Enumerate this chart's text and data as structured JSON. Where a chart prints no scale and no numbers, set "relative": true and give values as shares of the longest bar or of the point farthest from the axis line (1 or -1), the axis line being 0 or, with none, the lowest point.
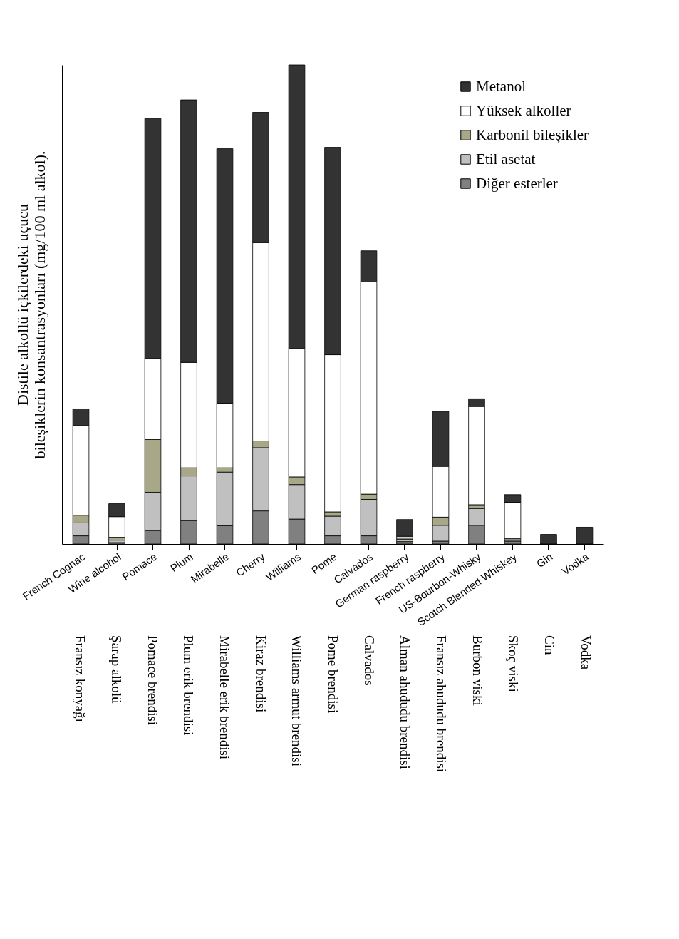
{
  "chart_data": {
    "type": "bar",
    "stacked": true,
    "relative": true,
    "legend": "top right",
    "grid": false,
    "ylabel": "Distile alkollü içkilerdeki uçucu bileşiklerin konsantrasyonları (mg/100 ml alkol).",
    "categories": [
      "French Cognac",
      "Wine alcohol",
      "Pomace",
      "Plum",
      "Mirabelle",
      "Cherry",
      "Williams",
      "Pome",
      "Calvados",
      "German raspberry",
      "French raspberry",
      "US-Bourbon-Whisky",
      "Scotch Blended Whiskey",
      "Gin",
      "Vodka"
    ],
    "series": [
      {
        "name": "Diğer esterler",
        "color": "#808080",
        "values": [
          0.017,
          0.003,
          0.028,
          0.049,
          0.038,
          0.069,
          0.052,
          0.017,
          0.017,
          0.005,
          0.006,
          0.039,
          0.006,
          0,
          0
        ]
      },
      {
        "name": "Etil asetat",
        "color": "#c0c0c0",
        "values": [
          0.027,
          0.005,
          0.08,
          0.093,
          0.112,
          0.132,
          0.072,
          0.041,
          0.076,
          0.005,
          0.033,
          0.035,
          0.002,
          0,
          0
        ]
      },
      {
        "name": "Karbonil bileşikler",
        "color": "#a8a888",
        "values": [
          0.016,
          0.006,
          0.11,
          0.017,
          0.009,
          0.014,
          0.016,
          0.009,
          0.011,
          0.003,
          0.017,
          0.008,
          0.003,
          0,
          0
        ]
      },
      {
        "name": "Yüksek alkoller",
        "color": "#ffffff",
        "values": [
          0.187,
          0.043,
          0.169,
          0.22,
          0.135,
          0.414,
          0.268,
          0.328,
          0.443,
          0.003,
          0.106,
          0.205,
          0.076,
          0,
          0
        ]
      },
      {
        "name": "Metanol",
        "color": "#333333",
        "values": [
          0.035,
          0.027,
          0.501,
          0.548,
          0.531,
          0.272,
          0.592,
          0.433,
          0.065,
          0.035,
          0.115,
          0.016,
          0.016,
          0.02,
          0.035
        ]
      }
    ],
    "annotations": [
      "Fransız konyağı",
      "Şarap alkolü",
      "Pomace brendisi",
      "Plum erik brendisi",
      "Mirabelle erik brendisi",
      "Kiraz brendisi",
      "Williams armut brendisi",
      "Pome brendisi",
      "Calvados",
      "Alman ahududu brendisi",
      "Fransız ahududu brendisi",
      "Burbon viski",
      "Skoç viski",
      "Cin",
      "Vodka"
    ]
  }
}
